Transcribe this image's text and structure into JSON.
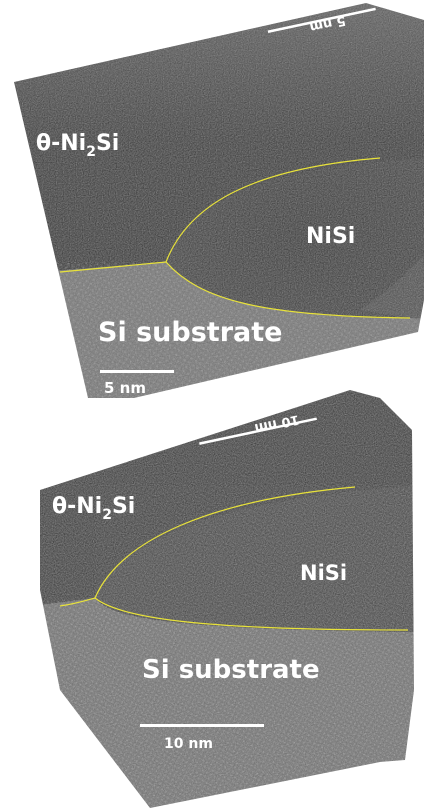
{
  "panel_top": {
    "phase_label": "θ-Ni",
    "phase_sub": "2",
    "phase_tail": "Si",
    "nisi_label": "NiSi",
    "substrate_label": "Si substrate",
    "scale_label": "5 nm",
    "mirrored_scale_label": "5 nm"
  },
  "panel_bottom": {
    "phase_label": "θ-Ni",
    "phase_sub": "2",
    "phase_tail": "Si",
    "nisi_label": "NiSi",
    "substrate_label": "Si substrate",
    "scale_label": "10 nm",
    "mirrored_scale_label": "10 nm"
  },
  "colors": {
    "interface_line": "#e8e23a",
    "dark_phase": "#2a2a2a",
    "nisi_phase": "#323232",
    "substrate": "#6e6e6e"
  }
}
